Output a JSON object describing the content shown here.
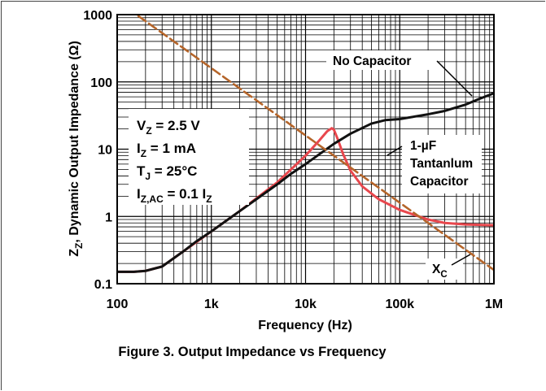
{
  "chart_data": {
    "type": "line",
    "xlabel": "Frequency (Hz)",
    "ylabel_main": "Z",
    "ylabel_sub": "Z",
    "ylabel_rest": ", Dynamic Output Impedance (Ω)",
    "x_scale": "log",
    "y_scale": "log",
    "xlim": [
      100,
      1000000
    ],
    "ylim": [
      0.1,
      1000
    ],
    "x_tick_values": [
      100,
      1000,
      10000,
      100000,
      1000000
    ],
    "x_tick_labels": [
      "100",
      "1k",
      "10k",
      "100k",
      "1M"
    ],
    "y_tick_values": [
      0.1,
      1,
      10,
      100,
      1000
    ],
    "y_tick_labels": [
      "0.1",
      "1",
      "10",
      "100",
      "1000"
    ],
    "grid": true,
    "conditions": [
      {
        "main": "V",
        "sub": "Z",
        "rest": " = 2.5 V"
      },
      {
        "main": "I",
        "sub": "Z",
        "rest": " = 1 mA"
      },
      {
        "main": "T",
        "sub": "J",
        "rest": " = 25°C"
      },
      {
        "main": "I",
        "sub": "Z,AC",
        "rest": " = 0.1 I",
        "tail_sub": "Z"
      }
    ],
    "series": [
      {
        "name": "No Capacitor",
        "color": "#111111",
        "x": [
          100,
          150,
          200,
          300,
          500,
          700,
          1000,
          2000,
          3000,
          5000,
          7000,
          10000,
          20000,
          30000,
          50000,
          70000,
          100000,
          200000,
          300000,
          500000,
          700000,
          1000000
        ],
        "y": [
          0.15,
          0.15,
          0.155,
          0.18,
          0.3,
          0.43,
          0.6,
          1.2,
          1.8,
          3.0,
          4.3,
          6.0,
          12,
          17,
          24,
          27,
          28,
          33,
          37,
          46,
          56,
          68
        ]
      },
      {
        "name": "1-µF Tantanlum Capacitor",
        "color": "#e8474d",
        "x": [
          100,
          150,
          200,
          300,
          500,
          1000,
          2000,
          5000,
          10000,
          14000,
          17000,
          19000,
          20000,
          22000,
          25000,
          30000,
          40000,
          60000,
          100000,
          200000,
          300000,
          500000,
          1000000
        ],
        "y": [
          0.15,
          0.15,
          0.155,
          0.18,
          0.3,
          0.6,
          1.2,
          3.2,
          8,
          13.5,
          18.5,
          20.5,
          19.5,
          14,
          8.5,
          4.8,
          2.8,
          1.8,
          1.25,
          0.9,
          0.8,
          0.76,
          0.74
        ]
      },
      {
        "name": "X",
        "name_sub": "C",
        "color": "#b5652a",
        "dashed": true,
        "x": [
          100,
          1000000
        ],
        "y": [
          1600,
          0.16
        ]
      }
    ],
    "annotations": [
      {
        "series": "No Capacitor",
        "lines": [
          "No Capacitor"
        ]
      },
      {
        "series": "1-µF Tantanlum Capacitor",
        "lines": [
          "1-µF",
          "Tantanlum",
          "Capacitor"
        ]
      }
    ]
  },
  "caption": "Figure 3. Output Impedance vs Frequency"
}
